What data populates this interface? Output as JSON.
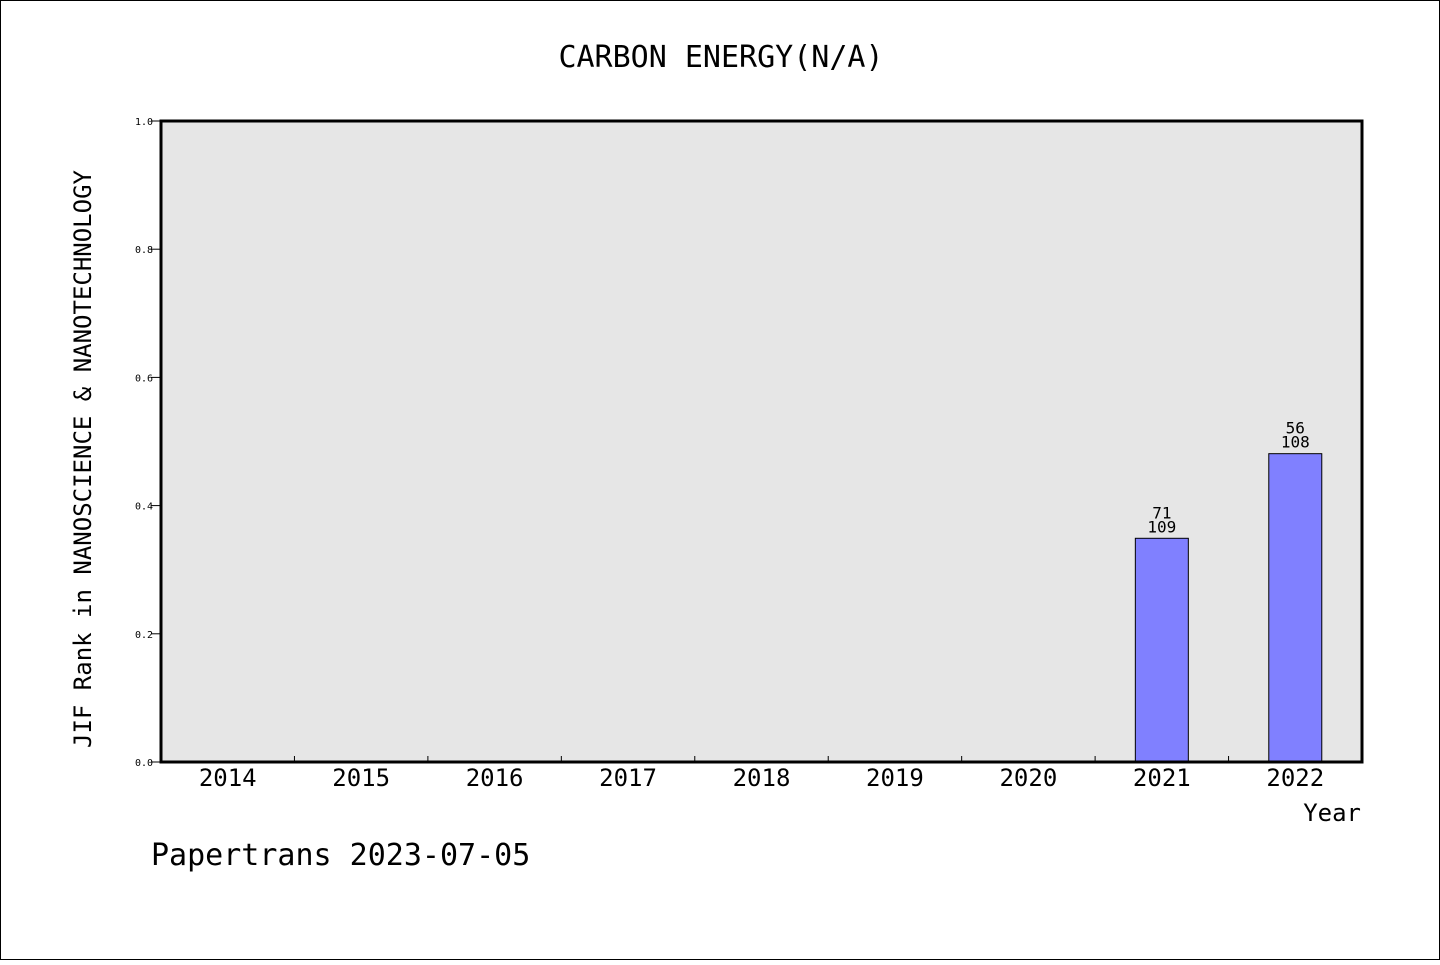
{
  "chart_data": {
    "type": "bar",
    "title": "CARBON ENERGY(N/A)",
    "xlabel": "Year",
    "ylabel": "JIF Rank in NANOSCIENCE & NANOTECHNOLOGY",
    "categories": [
      "2014",
      "2015",
      "2016",
      "2017",
      "2018",
      "2019",
      "2020",
      "2021",
      "2022"
    ],
    "values": [
      null,
      null,
      null,
      null,
      null,
      null,
      null,
      0.349,
      0.481
    ],
    "rank": [
      null,
      null,
      null,
      null,
      null,
      null,
      null,
      "71",
      "56"
    ],
    "total": [
      null,
      null,
      null,
      null,
      null,
      null,
      null,
      "109",
      "108"
    ],
    "ylim": [
      0,
      1.0
    ],
    "yticks": [
      "0.0",
      "0.2",
      "0.4",
      "0.6",
      "0.8",
      "1.0"
    ],
    "grid": false,
    "colors": {
      "bar_fill": "#8080ff",
      "plot_background": "#e6e6e6"
    }
  },
  "footer": "Papertrans 2023-07-05"
}
